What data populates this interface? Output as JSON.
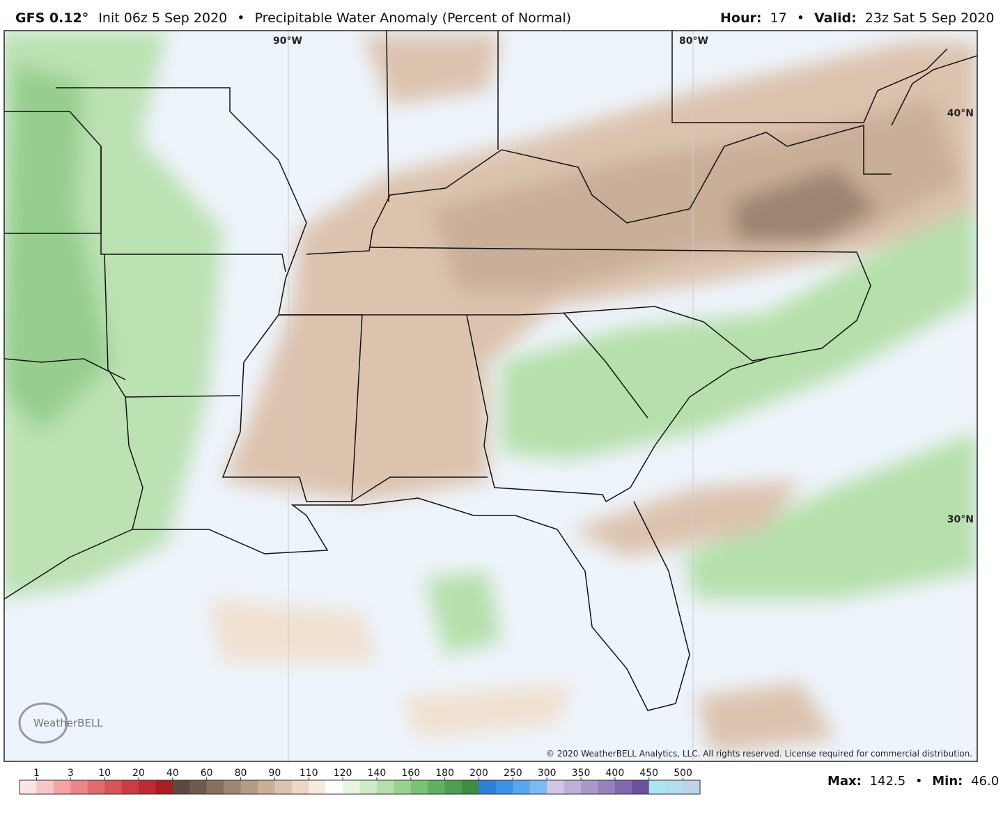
{
  "header": {
    "model": "GFS 0.12°",
    "init": "Init 06z 5 Sep 2020",
    "separator": "•",
    "product": "Precipitable Water Anomaly (Percent of Normal)",
    "hour_label": "Hour:",
    "hour": "17",
    "valid_label": "Valid:",
    "valid": "23z Sat 5 Sep 2020"
  },
  "map": {
    "labels": {
      "lon_90": "90°W",
      "lon_80": "80°W",
      "lat_40": "40°N",
      "lat_30": "30°N"
    },
    "logo": "WeatherBELL",
    "copyright": "© 2020 WeatherBELL Analytics, LLC. All rights reserved. License required for commercial distribution."
  },
  "colorbar": {
    "ticks": [
      "1",
      "3",
      "10",
      "20",
      "40",
      "60",
      "80",
      "90",
      "110",
      "120",
      "140",
      "160",
      "180",
      "200",
      "250",
      "300",
      "350",
      "400",
      "450",
      "500"
    ],
    "colors": [
      "#fde4e4",
      "#f9c6c8",
      "#f2a3a6",
      "#ea878a",
      "#e16b6f",
      "#d8535a",
      "#cd3c43",
      "#bf2a31",
      "#a61f25",
      "#5a4a40",
      "#6f5b4d",
      "#867060",
      "#9d8571",
      "#b59a84",
      "#c9ae98",
      "#dcc3ae",
      "#ead7c5",
      "#f5eadf",
      "#ffffff",
      "#e6f4e0",
      "#cfeac6",
      "#b6dfab",
      "#9bd28f",
      "#7dc275",
      "#5fb061",
      "#4e9e52",
      "#3f8c45",
      "#2f7fd8",
      "#3d92e8",
      "#5aa7ef",
      "#7bbbf2",
      "#cfc7e4",
      "#bdb1d9",
      "#a998cc",
      "#9582bf",
      "#7f68ae",
      "#6a529c",
      "#a7e6ee",
      "#b4dced",
      "#bcd3e8"
    ]
  },
  "footer": {
    "max_label": "Max:",
    "max": "142.5",
    "separator": "•",
    "min_label": "Min:",
    "min": "46.0"
  }
}
